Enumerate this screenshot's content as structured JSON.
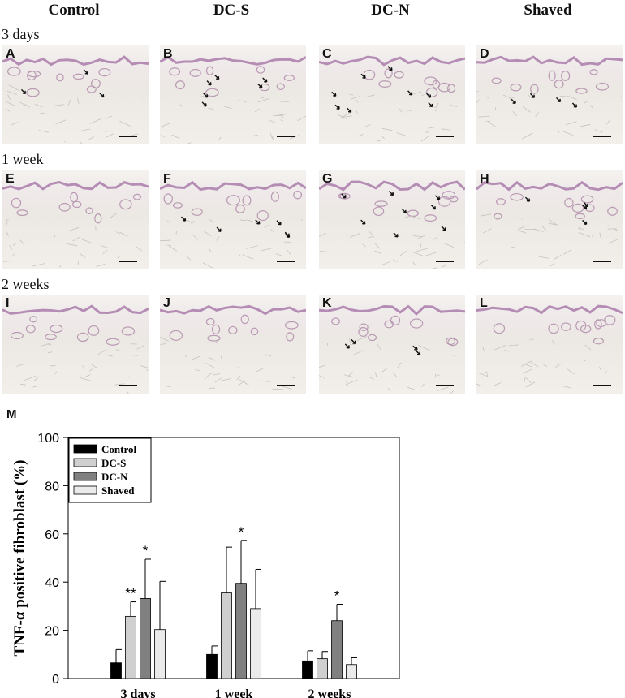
{
  "columns": [
    "Control",
    "DC-S",
    "DC-N",
    "Shaved"
  ],
  "rows": [
    {
      "label": "3 days",
      "panels": [
        {
          "letter": "A",
          "arrows": 3
        },
        {
          "letter": "B",
          "arrows": 6
        },
        {
          "letter": "C",
          "arrows": 8
        },
        {
          "letter": "D",
          "arrows": 4
        }
      ]
    },
    {
      "label": "1 week",
      "panels": [
        {
          "letter": "E",
          "arrows": 0
        },
        {
          "letter": "F",
          "arrows": 6
        },
        {
          "letter": "G",
          "arrows": 8
        },
        {
          "letter": "H",
          "arrows": 4
        }
      ]
    },
    {
      "label": "2 weeks",
      "panels": [
        {
          "letter": "I",
          "arrows": 0
        },
        {
          "letter": "J",
          "arrows": 0
        },
        {
          "letter": "K",
          "arrows": 4
        },
        {
          "letter": "L",
          "arrows": 0
        }
      ]
    }
  ],
  "chart_label": "M",
  "chart_data": {
    "type": "bar",
    "categories": [
      "3 days",
      "1 week",
      "2 weeks"
    ],
    "series": [
      {
        "name": "Control",
        "color": "#000000",
        "values": [
          6.5,
          10,
          7.3
        ],
        "errors": [
          5.5,
          3.5,
          4.2
        ],
        "significance": [
          "",
          "",
          ""
        ]
      },
      {
        "name": "DC-S",
        "color": "#d0d0d0",
        "values": [
          25.8,
          35.5,
          8.2
        ],
        "errors": [
          6,
          19,
          3
        ],
        "significance": [
          "**",
          "",
          ""
        ]
      },
      {
        "name": "DC-N",
        "color": "#808080",
        "values": [
          33.2,
          39.5,
          24
        ],
        "errors": [
          16.3,
          17.8,
          6.8
        ],
        "significance": [
          "*",
          "*",
          "*"
        ]
      },
      {
        "name": "Shaved",
        "color": "#ebebeb",
        "values": [
          20.3,
          29,
          5.8
        ],
        "errors": [
          20,
          16.3,
          2.8
        ],
        "significance": [
          "",
          "",
          ""
        ]
      }
    ],
    "ylabel": "TNF-α positive fibroblast (%)",
    "xlabel": "",
    "ylim": [
      0,
      100
    ],
    "yticks": [
      0,
      20,
      40,
      60,
      80,
      100
    ],
    "legend_position": "top-left",
    "grid": false
  }
}
